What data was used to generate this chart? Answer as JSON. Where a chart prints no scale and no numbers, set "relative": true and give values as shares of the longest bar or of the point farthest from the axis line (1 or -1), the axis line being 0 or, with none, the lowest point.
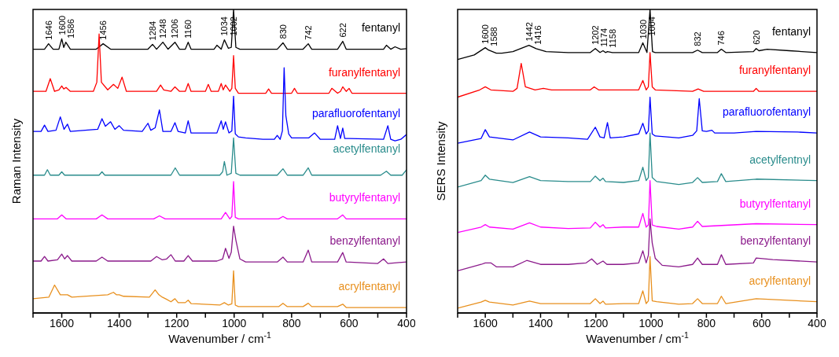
{
  "chart_data": [
    {
      "type": "line",
      "relative": true,
      "xlim": [
        1700,
        400
      ],
      "xticks": [
        {
          "value": 1700,
          "label": null
        },
        1600,
        {
          "value": 1500,
          "label": null
        },
        1400,
        {
          "value": 1300,
          "label": null
        },
        1200,
        {
          "value": 1100,
          "label": null
        },
        1000,
        {
          "value": 900,
          "label": null
        },
        800,
        {
          "value": 700,
          "label": null
        },
        600,
        {
          "value": 500,
          "label": null
        },
        400
      ],
      "xlabel": "Wavenumber / cm$^{-1}$",
      "ylabel": "Raman Intensity",
      "marker": "none",
      "line_style": "solid",
      "series": [
        {
          "name": "fentanyl",
          "color": "#000000",
          "x": [
            1700,
            1660,
            1646,
            1630,
            1610,
            1600,
            1593,
            1586,
            1570,
            1480,
            1456,
            1430,
            1300,
            1284,
            1270,
            1248,
            1230,
            1206,
            1190,
            1170,
            1160,
            1150,
            1070,
            1060,
            1045,
            1034,
            1020,
            1010,
            1002,
            994,
            980,
            850,
            830,
            815,
            760,
            742,
            730,
            640,
            622,
            610,
            480,
            470,
            455,
            440,
            420,
            400
          ],
          "values": [
            0.869,
            0.869,
            0.887,
            0.869,
            0.869,
            0.903,
            0.875,
            0.892,
            0.869,
            0.869,
            0.887,
            0.869,
            0.869,
            0.885,
            0.869,
            0.892,
            0.869,
            0.892,
            0.869,
            0.869,
            0.892,
            0.869,
            0.869,
            0.882,
            0.869,
            0.9,
            0.872,
            0.875,
            1,
            0.875,
            0.869,
            0.869,
            0.89,
            0.869,
            0.869,
            0.887,
            0.869,
            0.869,
            0.895,
            0.869,
            0.869,
            0.882,
            0.869,
            0.877,
            0.869,
            0.871
          ]
        },
        {
          "name": "furanylfentanyl",
          "color": "#ff0000",
          "x": [
            1700,
            1655,
            1640,
            1625,
            1610,
            1600,
            1593,
            1585,
            1570,
            1490,
            1478,
            1470,
            1462,
            1440,
            1420,
            1405,
            1390,
            1375,
            1270,
            1256,
            1245,
            1220,
            1206,
            1190,
            1170,
            1160,
            1150,
            1100,
            1090,
            1080,
            1055,
            1045,
            1038,
            1030,
            1015,
            1008,
            1002,
            996,
            985,
            890,
            880,
            870,
            800,
            790,
            780,
            670,
            660,
            640,
            630,
            622,
            610,
            600,
            590,
            400
          ],
          "values": [
            0.73,
            0.73,
            0.772,
            0.73,
            0.735,
            0.748,
            0.738,
            0.743,
            0.73,
            0.73,
            0.76,
            0.919,
            0.76,
            0.735,
            0.753,
            0.74,
            0.777,
            0.73,
            0.73,
            0.751,
            0.735,
            0.73,
            0.745,
            0.73,
            0.73,
            0.756,
            0.73,
            0.73,
            0.753,
            0.73,
            0.73,
            0.756,
            0.735,
            0.751,
            0.73,
            0.74,
            0.848,
            0.74,
            0.724,
            0.724,
            0.738,
            0.724,
            0.724,
            0.74,
            0.724,
            0.724,
            0.74,
            0.724,
            0.73,
            0.745,
            0.73,
            0.74,
            0.724,
            0.724
          ]
        },
        {
          "name": "parafluorofentanyl",
          "color": "#0000ff",
          "x": [
            1700,
            1672,
            1660,
            1648,
            1620,
            1605,
            1592,
            1580,
            1570,
            1475,
            1460,
            1448,
            1430,
            1415,
            1400,
            1385,
            1320,
            1300,
            1290,
            1275,
            1260,
            1248,
            1220,
            1206,
            1195,
            1170,
            1160,
            1150,
            1060,
            1045,
            1038,
            1030,
            1018,
            1008,
            1002,
            996,
            985,
            960,
            900,
            860,
            850,
            840,
            832,
            826,
            820,
            810,
            800,
            740,
            720,
            700,
            650,
            640,
            630,
            622,
            615,
            600,
            480,
            465,
            455,
            440,
            420,
            400
          ],
          "values": [
            0.598,
            0.598,
            0.619,
            0.598,
            0.602,
            0.646,
            0.605,
            0.622,
            0.598,
            0.605,
            0.64,
            0.615,
            0.63,
            0.605,
            0.617,
            0.602,
            0.598,
            0.625,
            0.602,
            0.61,
            0.669,
            0.598,
            0.598,
            0.627,
            0.598,
            0.593,
            0.633,
            0.593,
            0.593,
            0.633,
            0.605,
            0.63,
            0.593,
            0.6,
            0.714,
            0.59,
            0.58,
            0.577,
            0.572,
            0.572,
            0.585,
            0.572,
            0.6,
            0.808,
            0.65,
            0.59,
            0.577,
            0.577,
            0.593,
            0.572,
            0.572,
            0.617,
            0.575,
            0.609,
            0.575,
            0.575,
            0.572,
            0.617,
            0.572,
            0.567,
            0.572,
            0.588
          ]
        },
        {
          "name": "acetylfentanyl",
          "color": "#2a8c8c",
          "x": [
            1700,
            1660,
            1650,
            1640,
            1610,
            1600,
            1590,
            1470,
            1460,
            1450,
            1220,
            1205,
            1190,
            1050,
            1040,
            1034,
            1025,
            1010,
            1002,
            994,
            980,
            850,
            830,
            815,
            760,
            742,
            730,
            490,
            470,
            455,
            415,
            400
          ],
          "values": [
            0.454,
            0.454,
            0.472,
            0.454,
            0.454,
            0.465,
            0.454,
            0.454,
            0.465,
            0.454,
            0.454,
            0.478,
            0.454,
            0.454,
            0.465,
            0.499,
            0.454,
            0.46,
            0.577,
            0.46,
            0.454,
            0.454,
            0.475,
            0.454,
            0.454,
            0.478,
            0.454,
            0.454,
            0.467,
            0.454,
            0.454,
            0.472
          ]
        },
        {
          "name": "butyrylfentanyl",
          "color": "#ff00ff",
          "x": [
            1700,
            1615,
            1600,
            1585,
            1480,
            1460,
            1440,
            1280,
            1260,
            1240,
            1045,
            1030,
            1015,
            1008,
            1002,
            996,
            985,
            845,
            830,
            815,
            640,
            622,
            610,
            400
          ],
          "values": [
            0.31,
            0.31,
            0.323,
            0.31,
            0.31,
            0.323,
            0.31,
            0.31,
            0.32,
            0.31,
            0.31,
            0.331,
            0.31,
            0.318,
            0.433,
            0.315,
            0.31,
            0.31,
            0.318,
            0.31,
            0.31,
            0.323,
            0.31,
            0.31
          ]
        },
        {
          "name": "benzylfentanyl",
          "color": "#8b1a8b",
          "x": [
            1700,
            1672,
            1660,
            1648,
            1615,
            1600,
            1590,
            1580,
            1565,
            1480,
            1460,
            1440,
            1290,
            1270,
            1250,
            1235,
            1220,
            1205,
            1175,
            1160,
            1145,
            1060,
            1040,
            1030,
            1018,
            1010,
            1002,
            994,
            980,
            960,
            850,
            830,
            815,
            760,
            742,
            730,
            640,
            622,
            610,
            500,
            480,
            465,
            400
          ],
          "values": [
            0.171,
            0.171,
            0.186,
            0.171,
            0.175,
            0.194,
            0.178,
            0.189,
            0.171,
            0.171,
            0.184,
            0.171,
            0.171,
            0.186,
            0.175,
            0.178,
            0.192,
            0.171,
            0.171,
            0.189,
            0.171,
            0.171,
            0.178,
            0.213,
            0.18,
            0.2,
            0.286,
            0.24,
            0.178,
            0.168,
            0.168,
            0.184,
            0.168,
            0.168,
            0.207,
            0.168,
            0.168,
            0.199,
            0.168,
            0.163,
            0.178,
            0.163,
            0.168
          ]
        },
        {
          "name": "acrylfentanyl",
          "color": "#e8901e",
          "x": [
            1700,
            1645,
            1625,
            1605,
            1580,
            1565,
            1440,
            1420,
            1410,
            1400,
            1385,
            1295,
            1275,
            1262,
            1250,
            1235,
            1220,
            1206,
            1195,
            1170,
            1160,
            1150,
            1050,
            1034,
            1020,
            1008,
            1002,
            996,
            985,
            845,
            830,
            815,
            760,
            742,
            730,
            640,
            622,
            610,
            400
          ],
          "values": [
            0.047,
            0.052,
            0.092,
            0.06,
            0.06,
            0.052,
            0.06,
            0.068,
            0.06,
            0.06,
            0.055,
            0.052,
            0.076,
            0.06,
            0.052,
            0.045,
            0.037,
            0.047,
            0.034,
            0.034,
            0.042,
            0.031,
            0.026,
            0.034,
            0.026,
            0.03,
            0.139,
            0.026,
            0.021,
            0.021,
            0.032,
            0.021,
            0.021,
            0.032,
            0.021,
            0.021,
            0.029,
            0.018,
            0.018
          ]
        }
      ],
      "annotations": [
        {
          "text": "1646",
          "x": 1646,
          "y": 0.887
        },
        {
          "text": "1600",
          "x": 1600,
          "y": 0.903
        },
        {
          "text": "1586",
          "x": 1586,
          "y": 0.892
        },
        {
          "text": "1456",
          "x": 1456,
          "y": 0.887
        },
        {
          "text": "1284",
          "x": 1284,
          "y": 0.885
        },
        {
          "text": "1248",
          "x": 1248,
          "y": 0.892
        },
        {
          "text": "1206",
          "x": 1206,
          "y": 0.892
        },
        {
          "text": "1160",
          "x": 1160,
          "y": 0.892
        },
        {
          "text": "1034",
          "x": 1034,
          "y": 0.9
        },
        {
          "text": "1002",
          "x": 1002,
          "y": 0.9
        },
        {
          "text": "830",
          "x": 830,
          "y": 0.89
        },
        {
          "text": "742",
          "x": 742,
          "y": 0.887
        },
        {
          "text": "622",
          "x": 622,
          "y": 0.895
        }
      ]
    },
    {
      "type": "line",
      "relative": true,
      "xlim": [
        1700,
        400
      ],
      "xticks": [
        {
          "value": 1700,
          "label": null
        },
        1600,
        {
          "value": 1500,
          "label": null
        },
        1400,
        {
          "value": 1300,
          "label": null
        },
        1200,
        {
          "value": 1100,
          "label": null
        },
        1000,
        {
          "value": 900,
          "label": null
        },
        800,
        {
          "value": 700,
          "label": null
        },
        600,
        {
          "value": 500,
          "label": null
        },
        400
      ],
      "xlabel": "Wavenumber / cm$^{-1}$",
      "ylabel": "SERS Intensity",
      "marker": "none",
      "line_style": "solid",
      "series": [
        {
          "name": "fentanyl",
          "color": "#000000",
          "x": [
            1700,
            1640,
            1600,
            1588,
            1560,
            1540,
            1500,
            1442,
            1416,
            1380,
            1300,
            1220,
            1202,
            1185,
            1174,
            1165,
            1158,
            1140,
            1100,
            1045,
            1030,
            1015,
            1004,
            995,
            985,
            900,
            850,
            832,
            815,
            760,
            746,
            730,
            630,
            620,
            610,
            580,
            500,
            400
          ],
          "values": [
            0.835,
            0.85,
            0.874,
            0.866,
            0.856,
            0.856,
            0.861,
            0.882,
            0.871,
            0.861,
            0.858,
            0.858,
            0.871,
            0.858,
            0.864,
            0.858,
            0.861,
            0.858,
            0.858,
            0.858,
            0.89,
            0.858,
            1,
            0.861,
            0.858,
            0.858,
            0.858,
            0.866,
            0.858,
            0.858,
            0.869,
            0.858,
            0.861,
            0.871,
            0.864,
            0.869,
            0.864,
            0.858
          ]
        },
        {
          "name": "furanylfentanyl",
          "color": "#ff0000",
          "x": [
            1700,
            1620,
            1600,
            1580,
            1500,
            1485,
            1470,
            1455,
            1420,
            1390,
            1360,
            1220,
            1206,
            1190,
            1045,
            1030,
            1018,
            1010,
            1004,
            996,
            985,
            850,
            830,
            810,
            630,
            620,
            610,
            400
          ],
          "values": [
            0.711,
            0.735,
            0.745,
            0.735,
            0.73,
            0.74,
            0.822,
            0.745,
            0.735,
            0.74,
            0.735,
            0.735,
            0.745,
            0.735,
            0.735,
            0.766,
            0.735,
            0.745,
            0.858,
            0.745,
            0.735,
            0.73,
            0.738,
            0.73,
            0.73,
            0.74,
            0.73,
            0.73
          ]
        },
        {
          "name": "parafluorofentanyl",
          "color": "#0000ff",
          "x": [
            1700,
            1615,
            1600,
            1585,
            1500,
            1440,
            1400,
            1300,
            1230,
            1202,
            1185,
            1170,
            1158,
            1148,
            1100,
            1045,
            1030,
            1018,
            1010,
            1004,
            996,
            985,
            900,
            850,
            835,
            826,
            815,
            800,
            780,
            770,
            700,
            620,
            470,
            400
          ],
          "values": [
            0.559,
            0.575,
            0.604,
            0.58,
            0.57,
            0.596,
            0.58,
            0.577,
            0.572,
            0.612,
            0.58,
            0.577,
            0.627,
            0.577,
            0.58,
            0.59,
            0.625,
            0.59,
            0.6,
            0.711,
            0.59,
            0.583,
            0.577,
            0.585,
            0.6,
            0.706,
            0.6,
            0.598,
            0.602,
            0.593,
            0.593,
            0.598,
            0.596,
            0.593
          ]
        },
        {
          "name": "acetylfentnyl",
          "color": "#2a8c8c",
          "x": [
            1700,
            1615,
            1600,
            1585,
            1500,
            1440,
            1400,
            1300,
            1220,
            1202,
            1185,
            1174,
            1165,
            1100,
            1045,
            1030,
            1018,
            1010,
            1004,
            996,
            980,
            900,
            850,
            832,
            815,
            760,
            746,
            730,
            620,
            400
          ],
          "values": [
            0.415,
            0.436,
            0.454,
            0.441,
            0.43,
            0.449,
            0.436,
            0.433,
            0.433,
            0.451,
            0.436,
            0.444,
            0.433,
            0.43,
            0.436,
            0.48,
            0.436,
            0.446,
            0.593,
            0.446,
            0.433,
            0.423,
            0.43,
            0.446,
            0.43,
            0.433,
            0.459,
            0.433,
            0.441,
            0.436
          ]
        },
        {
          "name": "butyrylfentanyl",
          "color": "#ff00ff",
          "x": [
            1700,
            1615,
            1600,
            1585,
            1500,
            1440,
            1400,
            1300,
            1220,
            1202,
            1185,
            1174,
            1165,
            1100,
            1045,
            1030,
            1018,
            1010,
            1004,
            996,
            980,
            900,
            850,
            832,
            815,
            620,
            400
          ],
          "values": [
            0.265,
            0.283,
            0.291,
            0.283,
            0.276,
            0.297,
            0.283,
            0.278,
            0.28,
            0.299,
            0.283,
            0.291,
            0.28,
            0.283,
            0.283,
            0.328,
            0.283,
            0.29,
            0.436,
            0.29,
            0.285,
            0.276,
            0.283,
            0.302,
            0.285,
            0.294,
            0.291
          ]
        },
        {
          "name": "benzylfentanyl",
          "color": "#8b1a8b",
          "x": [
            1700,
            1615,
            1600,
            1580,
            1560,
            1500,
            1450,
            1400,
            1300,
            1235,
            1215,
            1195,
            1174,
            1160,
            1100,
            1045,
            1030,
            1018,
            1010,
            1004,
            996,
            985,
            960,
            900,
            850,
            832,
            815,
            760,
            746,
            730,
            630,
            620,
            560,
            400
          ],
          "values": [
            0.139,
            0.16,
            0.165,
            0.165,
            0.152,
            0.152,
            0.173,
            0.16,
            0.16,
            0.165,
            0.178,
            0.16,
            0.171,
            0.16,
            0.16,
            0.165,
            0.205,
            0.165,
            0.19,
            0.31,
            0.23,
            0.18,
            0.157,
            0.152,
            0.16,
            0.181,
            0.16,
            0.16,
            0.192,
            0.16,
            0.165,
            0.181,
            0.176,
            0.168
          ]
        },
        {
          "name": "acrylfentanyl",
          "color": "#e8901e",
          "x": [
            1700,
            1615,
            1600,
            1585,
            1500,
            1440,
            1400,
            1300,
            1220,
            1202,
            1185,
            1174,
            1165,
            1100,
            1045,
            1030,
            1018,
            1010,
            1004,
            996,
            980,
            900,
            850,
            832,
            815,
            760,
            746,
            730,
            620,
            400
          ],
          "values": [
            0.016,
            0.036,
            0.042,
            0.036,
            0.026,
            0.039,
            0.031,
            0.031,
            0.031,
            0.047,
            0.031,
            0.039,
            0.029,
            0.031,
            0.031,
            0.073,
            0.031,
            0.04,
            0.186,
            0.04,
            0.037,
            0.029,
            0.031,
            0.047,
            0.031,
            0.031,
            0.055,
            0.031,
            0.047,
            0.037
          ]
        }
      ],
      "annotations": [
        {
          "text": "1600",
          "x": 1600,
          "y": 0.874
        },
        {
          "text": "1588",
          "x": 1588,
          "y": 0.866
        },
        {
          "text": "1442",
          "x": 1442,
          "y": 0.882
        },
        {
          "text": "1416",
          "x": 1416,
          "y": 0.871
        },
        {
          "text": "1202",
          "x": 1202,
          "y": 0.871
        },
        {
          "text": "1174",
          "x": 1174,
          "y": 0.864
        },
        {
          "text": "1158",
          "x": 1158,
          "y": 0.861
        },
        {
          "text": "1030",
          "x": 1030,
          "y": 0.89
        },
        {
          "text": "1004",
          "x": 1004,
          "y": 0.9
        },
        {
          "text": "832",
          "x": 832,
          "y": 0.866
        },
        {
          "text": "746",
          "x": 746,
          "y": 0.869
        },
        {
          "text": "620",
          "x": 620,
          "y": 0.871
        }
      ]
    }
  ]
}
